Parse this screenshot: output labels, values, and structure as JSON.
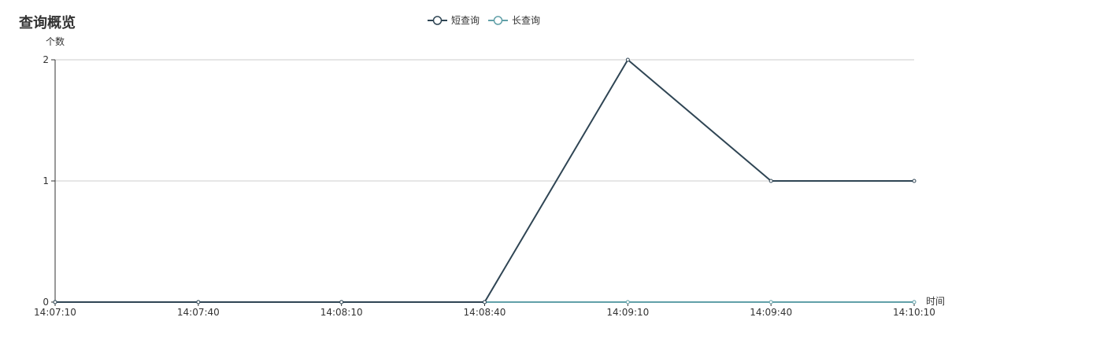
{
  "page": {
    "title": "查询概览"
  },
  "chart_data": {
    "type": "line",
    "x_axis_name": "时间",
    "y_axis_name": "个数",
    "categories": [
      "14:07:10",
      "14:07:40",
      "14:08:10",
      "14:08:40",
      "14:09:10",
      "14:09:40",
      "14:10:10"
    ],
    "ylim": [
      0,
      2
    ],
    "y_ticks": [
      "0",
      "1",
      "2"
    ],
    "grid": true,
    "legend_position": "top-center",
    "series": [
      {
        "name": "短查询",
        "color": "#2f4554",
        "values": [
          0,
          0,
          0,
          0,
          2,
          1,
          1
        ]
      },
      {
        "name": "长查询",
        "color": "#61a0a8",
        "values": [
          0,
          0,
          0,
          0,
          0,
          0,
          0
        ]
      }
    ]
  }
}
